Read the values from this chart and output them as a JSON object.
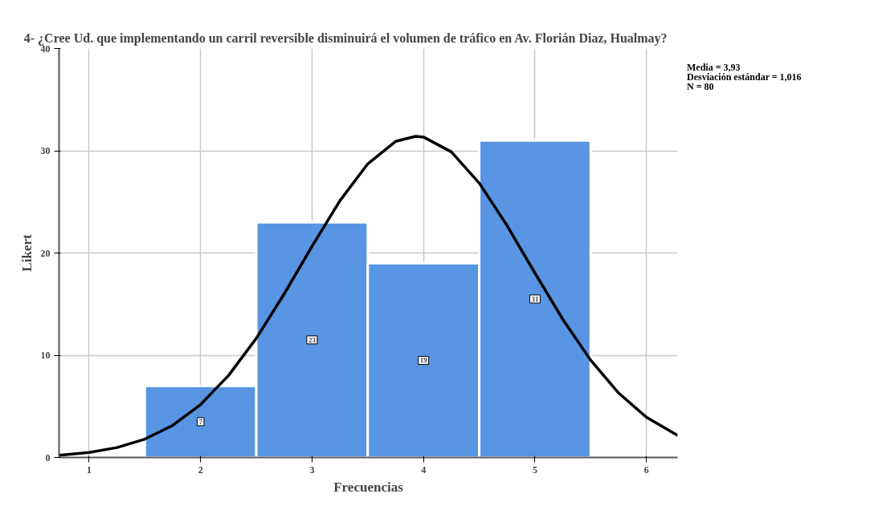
{
  "chart_data": {
    "type": "histogram",
    "title": "4- ¿Cree Ud. que implementando un carril reversible disminuirá el volumen de tráfico    en Av. Florián Diaz, Hualmay?",
    "xlabel": "Frecuencias",
    "ylabel": "Likert",
    "bins": [
      1.5,
      2.5,
      3.5,
      4.5,
      5.5
    ],
    "values": [
      7,
      23,
      19,
      31
    ],
    "color": "#5895e3",
    "value_labels": [
      "7",
      "23",
      "19",
      "31"
    ],
    "series": [
      {
        "type": "line",
        "color": "#000000",
        "x": [
          0.73,
          1.0,
          1.25,
          1.5,
          1.75,
          2.0,
          2.25,
          2.5,
          2.75,
          3.0,
          3.25,
          3.5,
          3.75,
          3.93,
          4.0,
          4.25,
          4.5,
          4.75,
          5.0,
          5.25,
          5.5,
          5.75,
          6.0,
          6.28
        ],
        "values": [
          0.22,
          0.49,
          0.97,
          1.8,
          3.14,
          5.17,
          8.01,
          11.66,
          16.0,
          20.66,
          25.11,
          28.72,
          30.92,
          31.41,
          31.34,
          29.89,
          26.84,
          22.68,
          18.04,
          13.51,
          9.52,
          6.31,
          3.94,
          2.16
        ]
      }
    ],
    "xlim": [
      0.73,
      6.28
    ],
    "xticks": [
      1,
      2,
      3,
      4,
      5,
      6
    ],
    "ylim": [
      0,
      40
    ],
    "yticks": [
      0,
      10,
      20,
      30,
      40
    ],
    "grid": true,
    "annotations": [
      "Media = 3,93",
      "Desviación estándar = 1,016",
      "N = 80"
    ]
  }
}
